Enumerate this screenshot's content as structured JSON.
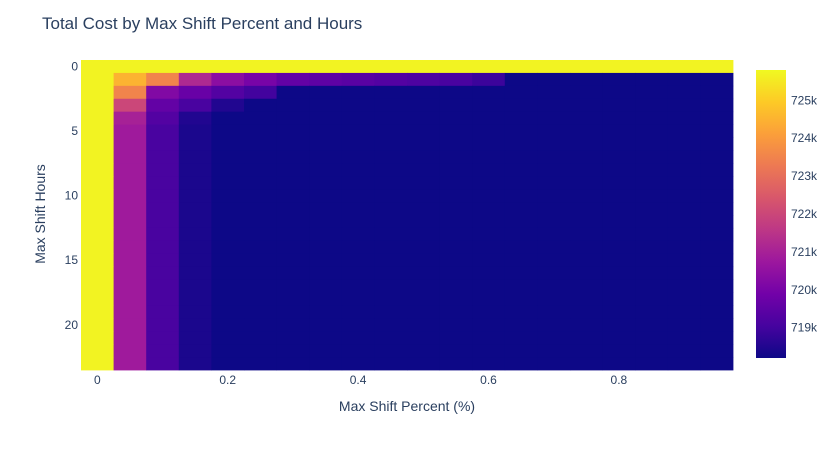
{
  "chart_data": {
    "type": "heatmap",
    "title": "Total Cost by Max Shift Percent and Hours",
    "xlabel": "Max Shift Percent (%)",
    "ylabel": "Max Shift Hours",
    "x": [
      0,
      0.05,
      0.1,
      0.15,
      0.2,
      0.25,
      0.3,
      0.35,
      0.4,
      0.45,
      0.5,
      0.55,
      0.6,
      0.65,
      0.7,
      0.75,
      0.8,
      0.85,
      0.9,
      0.95
    ],
    "y": [
      0,
      1,
      2,
      3,
      4,
      5,
      6,
      7,
      8,
      9,
      10,
      11,
      12,
      13,
      14,
      15,
      16,
      17,
      18,
      19,
      20,
      21,
      22,
      23
    ],
    "x_ticks": [
      {
        "value": 0,
        "label": "0"
      },
      {
        "value": 0.2,
        "label": "0.2"
      },
      {
        "value": 0.4,
        "label": "0.4"
      },
      {
        "value": 0.6,
        "label": "0.6"
      },
      {
        "value": 0.8,
        "label": "0.8"
      }
    ],
    "y_ticks": [
      {
        "value": 0,
        "label": "0"
      },
      {
        "value": 5,
        "label": "5"
      },
      {
        "value": 10,
        "label": "10"
      },
      {
        "value": 15,
        "label": "15"
      },
      {
        "value": 20,
        "label": "20"
      }
    ],
    "y_reversed": true,
    "colorscale": "Plasma",
    "zmin": 718200,
    "zmax": 725800,
    "colorbar_ticks": [
      {
        "value": 719000,
        "label": "719k"
      },
      {
        "value": 720000,
        "label": "720k"
      },
      {
        "value": 721000,
        "label": "721k"
      },
      {
        "value": 722000,
        "label": "722k"
      },
      {
        "value": 723000,
        "label": "723k"
      },
      {
        "value": 724000,
        "label": "724k"
      },
      {
        "value": 725000,
        "label": "725k"
      }
    ],
    "base_value": 718200,
    "row0_value": 725700,
    "col0_value": 725700,
    "rows": [
      {
        "hour": 1,
        "values": [
          725700,
          724500,
          723500,
          721200,
          720400,
          720000,
          719600,
          719500,
          719400,
          719300,
          719200,
          719100,
          718900
        ]
      },
      {
        "hour": 2,
        "values": [
          725700,
          723500,
          720200,
          719700,
          719300,
          719000
        ]
      },
      {
        "hour": 3,
        "values": [
          725700,
          722000,
          719600,
          719100,
          718500
        ]
      },
      {
        "hour": 4,
        "values": [
          725700,
          721000,
          719300,
          718500
        ]
      },
      {
        "hour": "5-23",
        "values": [
          725700,
          720800,
          719100,
          718400
        ]
      }
    ]
  }
}
